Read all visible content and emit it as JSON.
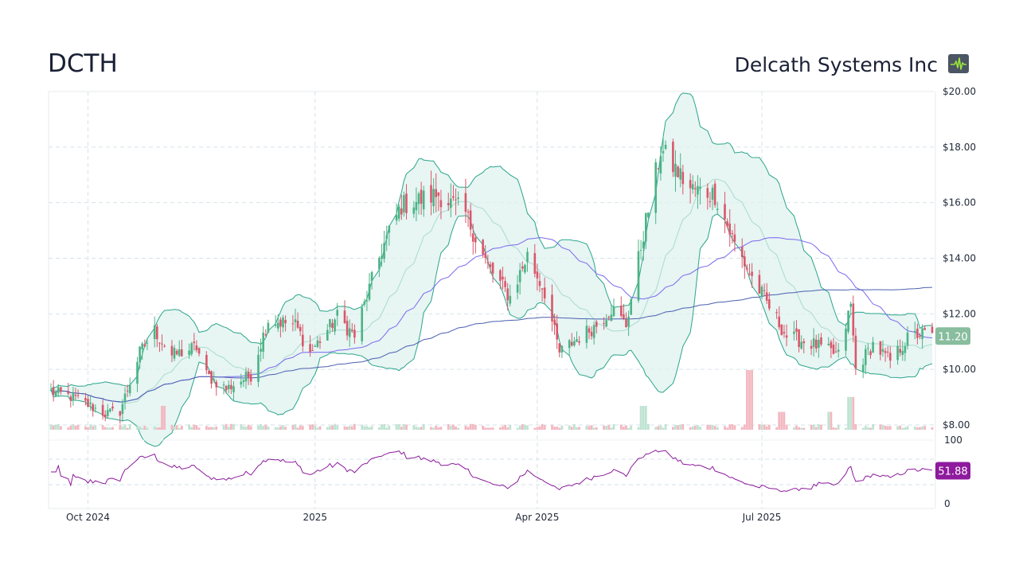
{
  "header": {
    "ticker": "DCTH",
    "company_name": "Delcath Systems Inc",
    "logo_icon": "pulse-chart-icon"
  },
  "colors": {
    "up": "#4cb386",
    "down": "#d9576a",
    "bollinger_fill": "#dff2ef",
    "bollinger_line": "#2aa58a",
    "sma_short": "#7b68ee",
    "sma_long": "#4a5fb0",
    "rsi_line": "#8b1a9b",
    "price_badge": "#88bd9e",
    "rsi_badge": "#8e1a9e",
    "grid": "#d6e2ea"
  },
  "chart_data": {
    "type": "candlestick",
    "price_axis": {
      "min": 8,
      "max": 20,
      "ticks": [
        8,
        10,
        12,
        14,
        16,
        18,
        20
      ],
      "tick_labels": [
        "$8.00",
        "$10.00",
        "$12.00",
        "$14.00",
        "$16.00",
        "$18.00",
        "$20.00"
      ]
    },
    "x_ticks": [
      {
        "label": "Oct 2024",
        "date": "2024-10-01"
      },
      {
        "label": "2025",
        "date": "2025-01-01"
      },
      {
        "label": "Apr 2025",
        "date": "2025-04-01"
      },
      {
        "label": "Jul 2025",
        "date": "2025-07-01"
      }
    ],
    "date_range": [
      "2024-09-16",
      "2025-09-08"
    ],
    "current_price_label": "11.20",
    "rsi": {
      "min": 0,
      "max": 100,
      "tick_labels": [
        "100",
        "0"
      ],
      "current_label": "51.88",
      "bands": [
        30,
        70
      ]
    },
    "close_anchors": [
      [
        "2024-09-16",
        9.2
      ],
      [
        "2024-09-25",
        9.0
      ],
      [
        "2024-10-08",
        8.4
      ],
      [
        "2024-10-14",
        8.5
      ],
      [
        "2024-10-22",
        10.6
      ],
      [
        "2024-10-28",
        11.4
      ],
      [
        "2024-11-04",
        10.5
      ],
      [
        "2024-11-14",
        10.8
      ],
      [
        "2024-11-18",
        9.8
      ],
      [
        "2024-11-26",
        9.3
      ],
      [
        "2024-12-06",
        9.8
      ],
      [
        "2024-12-13",
        11.8
      ],
      [
        "2024-12-24",
        11.6
      ],
      [
        "2024-12-30",
        10.6
      ],
      [
        "2025-01-10",
        11.9
      ],
      [
        "2025-01-17",
        11.2
      ],
      [
        "2025-01-28",
        14.3
      ],
      [
        "2025-02-05",
        15.9
      ],
      [
        "2025-02-20",
        16.3
      ],
      [
        "2025-03-03",
        15.6
      ],
      [
        "2025-03-12",
        13.7
      ],
      [
        "2025-03-21",
        12.6
      ],
      [
        "2025-03-28",
        14.1
      ],
      [
        "2025-04-04",
        12.8
      ],
      [
        "2025-04-10",
        10.6
      ],
      [
        "2025-04-17",
        11.1
      ],
      [
        "2025-04-25",
        11.6
      ],
      [
        "2025-05-01",
        12.2
      ],
      [
        "2025-05-07",
        11.6
      ],
      [
        "2025-05-14",
        14.9
      ],
      [
        "2025-05-21",
        17.9
      ],
      [
        "2025-06-02",
        16.5
      ],
      [
        "2025-06-12",
        16.3
      ],
      [
        "2025-06-20",
        14.5
      ],
      [
        "2025-06-27",
        13.3
      ],
      [
        "2025-07-03",
        12.4
      ],
      [
        "2025-07-11",
        11.2
      ],
      [
        "2025-07-22",
        10.9
      ],
      [
        "2025-08-01",
        10.5
      ],
      [
        "2025-08-06",
        12.3
      ],
      [
        "2025-08-08",
        10.0
      ],
      [
        "2025-08-15",
        10.9
      ],
      [
        "2025-08-22",
        10.3
      ],
      [
        "2025-08-29",
        11.1
      ],
      [
        "2025-09-03",
        11.3
      ],
      [
        "2025-09-08",
        11.2
      ]
    ],
    "volume_spikes": [
      [
        "2024-11-01",
        0.4
      ],
      [
        "2025-05-14",
        0.4
      ],
      [
        "2025-06-26",
        1.0
      ],
      [
        "2025-07-09",
        0.3
      ],
      [
        "2025-07-28",
        0.3
      ],
      [
        "2025-08-06",
        0.55
      ]
    ]
  }
}
